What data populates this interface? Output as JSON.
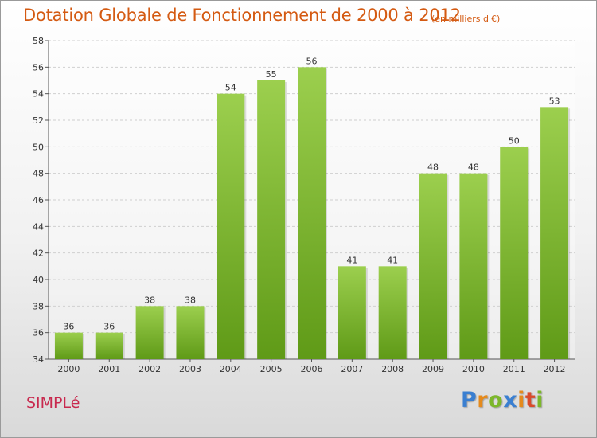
{
  "title": "Dotation Globale de Fonctionnement de 2000 à 2012",
  "subtitle": "(en milliers d'€)",
  "commune": "SIMPLé",
  "brand": {
    "letters": [
      "P",
      "r",
      "o",
      "x",
      "i",
      "t",
      "i"
    ],
    "colors": [
      "#3a7fd1",
      "#e58a1c",
      "#7cb72a",
      "#3a7fd1",
      "#e58a1c",
      "#d94b2b",
      "#7cb72a"
    ]
  },
  "colors": {
    "title": "#d45a12",
    "commune": "#c8294e",
    "bar_top": "#9ccf4e",
    "bar_bottom": "#5f9a17"
  },
  "chart_data": {
    "type": "bar",
    "title": "Dotation Globale de Fonctionnement de 2000 à 2012",
    "subtitle": "(en milliers d'€)",
    "xlabel": "",
    "ylabel": "",
    "categories": [
      "2000",
      "2001",
      "2002",
      "2003",
      "2004",
      "2005",
      "2006",
      "2007",
      "2008",
      "2009",
      "2010",
      "2011",
      "2012"
    ],
    "values": [
      36,
      36,
      38,
      38,
      54,
      55,
      56,
      41,
      41,
      48,
      48,
      50,
      53
    ],
    "ylim": [
      34,
      58
    ],
    "yticks": [
      34,
      36,
      38,
      40,
      42,
      44,
      46,
      48,
      50,
      52,
      54,
      56,
      58
    ],
    "grid": true,
    "data_labels": true,
    "legend": "none"
  }
}
